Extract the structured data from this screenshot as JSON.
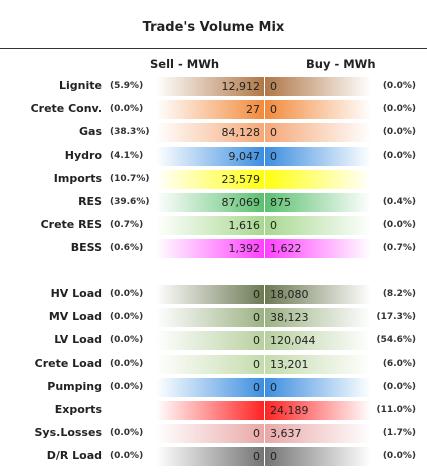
{
  "title": "Trade's Volume Mix",
  "columns": {
    "sell": "Sell - MWh",
    "buy": "Buy - MWh"
  },
  "sections": [
    {
      "rows": [
        {
          "label": "Lignite",
          "sell_pct": "(5.9%)",
          "sell": "12,912",
          "buy": "0",
          "buy_pct": "(0.0%)",
          "color": "#b07848"
        },
        {
          "label": "Crete Conv.",
          "sell_pct": "(0.0%)",
          "sell": "27",
          "buy": "0",
          "buy_pct": "(0.0%)",
          "color": "#f28a3c"
        },
        {
          "label": "Gas",
          "sell_pct": "(38.3%)",
          "sell": "84,128",
          "buy": "0",
          "buy_pct": "(0.0%)",
          "color": "#f5a878"
        },
        {
          "label": "Hydro",
          "sell_pct": "(4.1%)",
          "sell": "9,047",
          "buy": "0",
          "buy_pct": "(0.0%)",
          "color": "#3c8ee0"
        },
        {
          "label": "Imports",
          "sell_pct": "(10.7%)",
          "sell": "23,579",
          "color": "#ffff10"
        },
        {
          "label": "RES",
          "sell_pct": "(39.6%)",
          "sell": "87,069",
          "buy": "875",
          "buy_pct": "(0.4%)",
          "color": "#5cc070"
        },
        {
          "label": "Crete RES",
          "sell_pct": "(0.7%)",
          "sell": "1,616",
          "buy": "0",
          "buy_pct": "(0.0%)",
          "color": "#a8d890"
        },
        {
          "label": "BESS",
          "sell_pct": "(0.6%)",
          "sell": "1,392",
          "buy": "1,622",
          "buy_pct": "(0.7%)",
          "color": "#ff40ff"
        }
      ]
    },
    {
      "rows": [
        {
          "label": "HV Load",
          "sell_pct": "(0.0%)",
          "sell": "0",
          "buy": "18,080",
          "buy_pct": "(8.2%)",
          "color": "#6c7a54"
        },
        {
          "label": "MV Load",
          "sell_pct": "(0.0%)",
          "sell": "0",
          "buy": "38,123",
          "buy_pct": "(17.3%)",
          "color": "#9cb284"
        },
        {
          "label": "LV Load",
          "sell_pct": "(0.0%)",
          "sell": "0",
          "buy": "120,044",
          "buy_pct": "(54.6%)",
          "color": "#b8d0a0"
        },
        {
          "label": "Crete Load",
          "sell_pct": "(0.0%)",
          "sell": "0",
          "buy": "13,201",
          "buy_pct": "(6.0%)",
          "color": "#c4dcac"
        },
        {
          "label": "Pumping",
          "sell_pct": "(0.0%)",
          "sell": "0",
          "buy": "0",
          "buy_pct": "(0.0%)",
          "color": "#3c8ee0"
        },
        {
          "label": "Exports",
          "buy": "24,189",
          "buy_pct": "(11.0%)",
          "color": "#ff2222"
        },
        {
          "label": "Sys.Losses",
          "sell_pct": "(0.0%)",
          "sell": "0",
          "buy": "3,637",
          "buy_pct": "(1.7%)",
          "color": "#eaa8a8"
        },
        {
          "label": "D/R Load",
          "sell_pct": "(0.0%)",
          "sell": "0",
          "buy": "0",
          "buy_pct": "(0.0%)",
          "color": "#747474"
        }
      ]
    }
  ]
}
